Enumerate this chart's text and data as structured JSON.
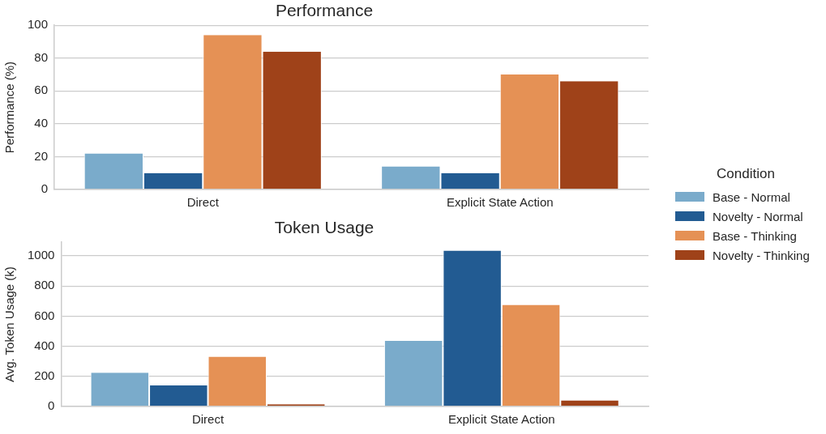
{
  "chart_data": [
    {
      "type": "bar",
      "title": "Performance",
      "ylabel": "Performance (%)",
      "categories": [
        "Direct",
        "Explicit State Action"
      ],
      "series": [
        {
          "name": "Base - Normal",
          "color": "#7aabcb",
          "values": [
            22,
            14
          ]
        },
        {
          "name": "Novelty - Normal",
          "color": "#225b92",
          "values": [
            10,
            10
          ]
        },
        {
          "name": "Base - Thinking",
          "color": "#e59155",
          "values": [
            94,
            70
          ]
        },
        {
          "name": "Novelty - Thinking",
          "color": "#9f4219",
          "values": [
            84,
            66
          ]
        }
      ],
      "ylim": [
        0,
        100
      ],
      "yticks": [
        0,
        20,
        40,
        60,
        80,
        100
      ],
      "grid": "y",
      "legend": "right",
      "legend_title": "Condition"
    },
    {
      "type": "bar",
      "title": "Token Usage",
      "ylabel": "Avg. Token Usage (k)",
      "categories": [
        "Direct",
        "Explicit State Action"
      ],
      "series": [
        {
          "color": "#7aabcb",
          "values": [
            225,
            435
          ]
        },
        {
          "color": "#225b92",
          "values": [
            140,
            1035
          ]
        },
        {
          "color": "#e59155",
          "values": [
            330,
            675
          ]
        },
        {
          "color": "#9f4219",
          "values": [
            15,
            40
          ]
        }
      ],
      "ylim": [
        0,
        1090
      ],
      "yticks": [
        0,
        200,
        400,
        600,
        800,
        1000
      ],
      "grid": "y"
    }
  ]
}
